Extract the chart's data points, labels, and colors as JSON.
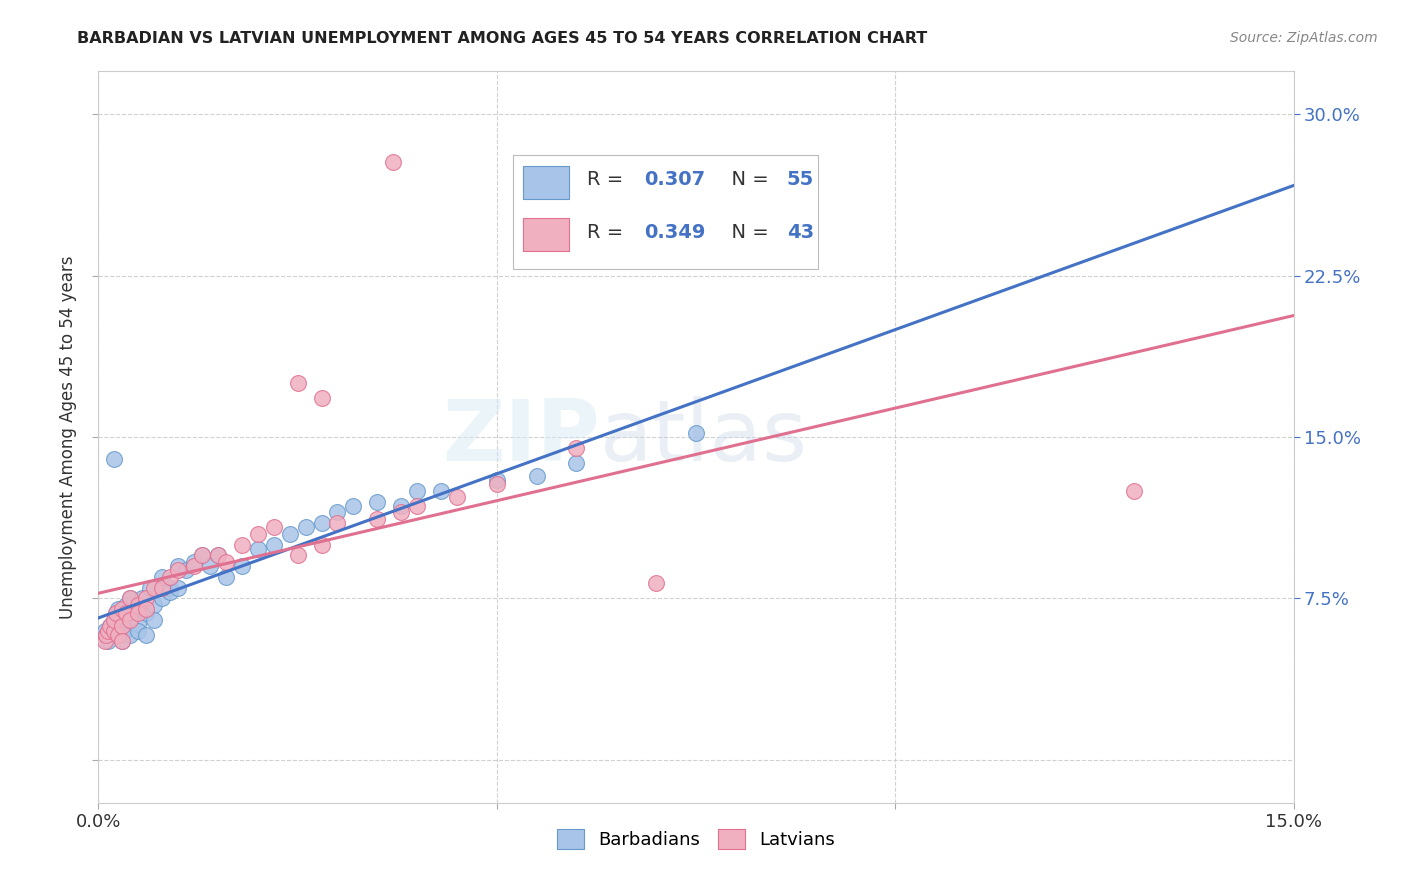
{
  "title": "BARBADIAN VS LATVIAN UNEMPLOYMENT AMONG AGES 45 TO 54 YEARS CORRELATION CHART",
  "source": "Source: ZipAtlas.com",
  "ylabel": "Unemployment Among Ages 45 to 54 years",
  "xlim": [
    0.0,
    0.15
  ],
  "ylim": [
    -0.02,
    0.32
  ],
  "barbadian_color": "#a8c4e8",
  "barbadian_edge_color": "#6699cc",
  "latvian_color": "#f0b0c0",
  "latvian_edge_color": "#e07090",
  "barbadian_line_color": "#4472c4",
  "latvian_line_color": "#e07090",
  "text_color_blue": "#4472c4",
  "background_color": "#ffffff",
  "grid_color": "#cccccc",
  "watermark_color": "#d8eaf8",
  "legend_R1": "0.307",
  "legend_N1": "55",
  "legend_R2": "0.349",
  "legend_N2": "43",
  "barb_x": [
    0.0008,
    0.001,
    0.0012,
    0.0015,
    0.002,
    0.002,
    0.0022,
    0.0025,
    0.003,
    0.003,
    0.003,
    0.0032,
    0.0035,
    0.004,
    0.004,
    0.004,
    0.0042,
    0.005,
    0.005,
    0.005,
    0.0055,
    0.006,
    0.006,
    0.0065,
    0.007,
    0.007,
    0.008,
    0.008,
    0.009,
    0.009,
    0.01,
    0.01,
    0.011,
    0.012,
    0.013,
    0.014,
    0.015,
    0.016,
    0.018,
    0.02,
    0.022,
    0.024,
    0.026,
    0.028,
    0.03,
    0.032,
    0.035,
    0.038,
    0.04,
    0.043,
    0.05,
    0.055,
    0.06,
    0.075,
    0.002
  ],
  "barb_y": [
    0.06,
    0.058,
    0.055,
    0.062,
    0.065,
    0.06,
    0.068,
    0.07,
    0.063,
    0.058,
    0.055,
    0.06,
    0.072,
    0.065,
    0.058,
    0.075,
    0.068,
    0.07,
    0.063,
    0.06,
    0.075,
    0.068,
    0.058,
    0.08,
    0.072,
    0.065,
    0.075,
    0.085,
    0.08,
    0.078,
    0.08,
    0.09,
    0.088,
    0.092,
    0.095,
    0.09,
    0.095,
    0.085,
    0.09,
    0.098,
    0.1,
    0.105,
    0.108,
    0.11,
    0.115,
    0.118,
    0.12,
    0.118,
    0.125,
    0.125,
    0.13,
    0.132,
    0.138,
    0.152,
    0.14
  ],
  "latv_x": [
    0.0008,
    0.001,
    0.0012,
    0.0015,
    0.002,
    0.002,
    0.0022,
    0.0025,
    0.003,
    0.003,
    0.003,
    0.0035,
    0.004,
    0.004,
    0.005,
    0.005,
    0.006,
    0.006,
    0.007,
    0.008,
    0.009,
    0.01,
    0.012,
    0.013,
    0.015,
    0.016,
    0.018,
    0.02,
    0.022,
    0.025,
    0.028,
    0.03,
    0.035,
    0.038,
    0.04,
    0.045,
    0.05,
    0.06,
    0.037,
    0.13,
    0.07,
    0.025,
    0.028
  ],
  "latv_y": [
    0.055,
    0.058,
    0.06,
    0.062,
    0.06,
    0.065,
    0.068,
    0.058,
    0.07,
    0.062,
    0.055,
    0.068,
    0.065,
    0.075,
    0.072,
    0.068,
    0.075,
    0.07,
    0.08,
    0.08,
    0.085,
    0.088,
    0.09,
    0.095,
    0.095,
    0.092,
    0.1,
    0.105,
    0.108,
    0.095,
    0.1,
    0.11,
    0.112,
    0.115,
    0.118,
    0.122,
    0.128,
    0.145,
    0.278,
    0.125,
    0.082,
    0.175,
    0.168
  ]
}
